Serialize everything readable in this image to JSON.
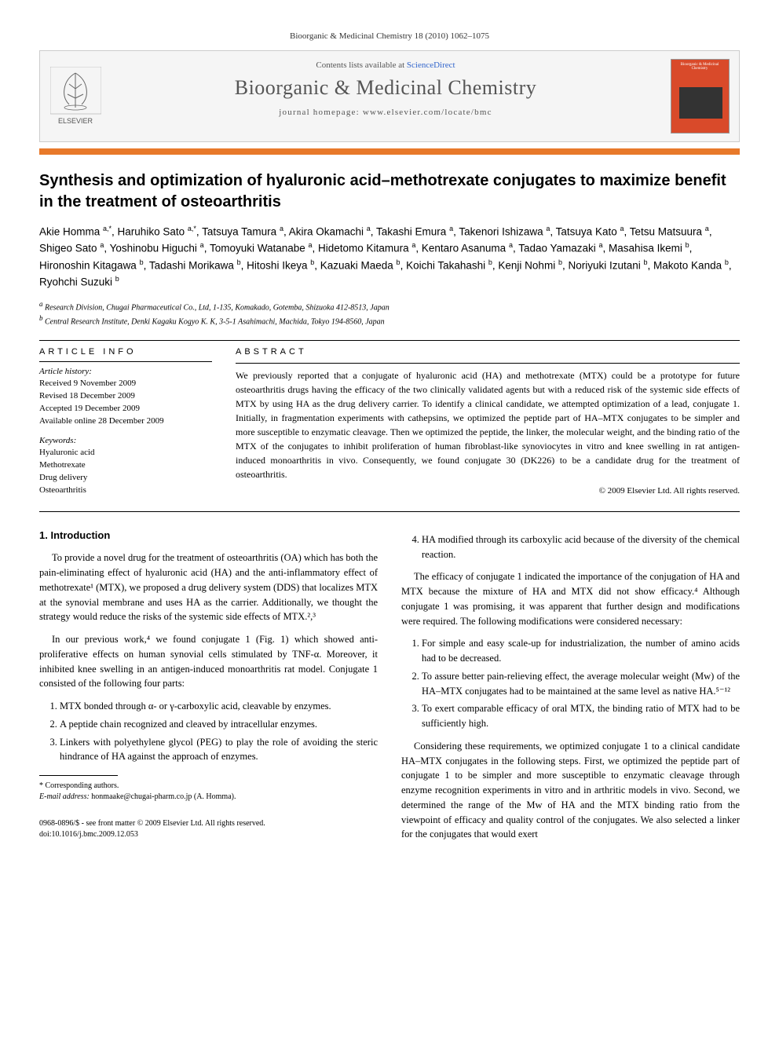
{
  "citation": "Bioorganic & Medicinal Chemistry 18 (2010) 1062–1075",
  "header": {
    "contents_prefix": "Contents lists available at ",
    "sd_label": "ScienceDirect",
    "journal_name": "Bioorganic & Medicinal Chemistry",
    "homepage_label": "journal homepage: www.elsevier.com/locate/bmc",
    "publisher": "ELSEVIER",
    "cover_text": "Bioorganic & Medicinal Chemistry"
  },
  "colors": {
    "accent_bar": "#e8792a",
    "cover_bg": "#d94a2a",
    "link": "#3366cc"
  },
  "title": "Synthesis and optimization of hyaluronic acid–methotrexate conjugates to maximize benefit in the treatment of osteoarthritis",
  "authors_html": "Akie Homma <sup>a,*</sup>, Haruhiko Sato <sup>a,*</sup>, Tatsuya Tamura <sup>a</sup>, Akira Okamachi <sup>a</sup>, Takashi Emura <sup>a</sup>, Takenori Ishizawa <sup>a</sup>, Tatsuya Kato <sup>a</sup>, Tetsu Matsuura <sup>a</sup>, Shigeo Sato <sup>a</sup>, Yoshinobu Higuchi <sup>a</sup>, Tomoyuki Watanabe <sup>a</sup>, Hidetomo Kitamura <sup>a</sup>, Kentaro Asanuma <sup>a</sup>, Tadao Yamazaki <sup>a</sup>, Masahisa Ikemi <sup>b</sup>, Hironoshin Kitagawa <sup>b</sup>, Tadashi Morikawa <sup>b</sup>, Hitoshi Ikeya <sup>b</sup>, Kazuaki Maeda <sup>b</sup>, Koichi Takahashi <sup>b</sup>, Kenji Nohmi <sup>b</sup>, Noriyuki Izutani <sup>b</sup>, Makoto Kanda <sup>b</sup>, Ryohchi Suzuki <sup>b</sup>",
  "affiliations": {
    "a": "Research Division, Chugai Pharmaceutical Co., Ltd, 1-135, Komakado, Gotemba, Shizuoka 412-8513, Japan",
    "b": "Central Research Institute, Denki Kagaku Kogyo K. K, 3-5-1 Asahimachi, Machida, Tokyo 194-8560, Japan"
  },
  "article_info": {
    "heading": "ARTICLE INFO",
    "history_head": "Article history:",
    "received": "Received 9 November 2009",
    "revised": "Revised 18 December 2009",
    "accepted": "Accepted 19 December 2009",
    "available": "Available online 28 December 2009",
    "keywords_head": "Keywords:",
    "keywords": [
      "Hyaluronic acid",
      "Methotrexate",
      "Drug delivery",
      "Osteoarthritis"
    ]
  },
  "abstract": {
    "heading": "ABSTRACT",
    "text": "We previously reported that a conjugate of hyaluronic acid (HA) and methotrexate (MTX) could be a prototype for future osteoarthritis drugs having the efficacy of the two clinically validated agents but with a reduced risk of the systemic side effects of MTX by using HA as the drug delivery carrier. To identify a clinical candidate, we attempted optimization of a lead, conjugate 1. Initially, in fragmentation experiments with cathepsins, we optimized the peptide part of HA–MTX conjugates to be simpler and more susceptible to enzymatic cleavage. Then we optimized the peptide, the linker, the molecular weight, and the binding ratio of the MTX of the conjugates to inhibit proliferation of human fibroblast-like synoviocytes in vitro and knee swelling in rat antigen-induced monoarthritis in vivo. Consequently, we found conjugate 30 (DK226) to be a candidate drug for the treatment of osteoarthritis.",
    "copyright": "© 2009 Elsevier Ltd. All rights reserved."
  },
  "body": {
    "left": {
      "section_num": "1.",
      "section_title": "Introduction",
      "p1": "To provide a novel drug for the treatment of osteoarthritis (OA) which has both the pain-eliminating effect of hyaluronic acid (HA) and the anti-inflammatory effect of methotrexate¹ (MTX), we proposed a drug delivery system (DDS) that localizes MTX at the synovial membrane and uses HA as the carrier. Additionally, we thought the strategy would reduce the risks of the systemic side effects of MTX.²,³",
      "p2": "In our previous work,⁴ we found conjugate 1 (Fig. 1) which showed anti-proliferative effects on human synovial cells stimulated by TNF-α. Moreover, it inhibited knee swelling in an antigen-induced monoarthritis rat model. Conjugate 1 consisted of the following four parts:",
      "list": [
        "MTX bonded through α- or γ-carboxylic acid, cleavable by enzymes.",
        "A peptide chain recognized and cleaved by intracellular enzymes.",
        "Linkers with polyethylene glycol (PEG) to play the role of avoiding the steric hindrance of HA against the approach of enzymes."
      ]
    },
    "right": {
      "list_cont": [
        "HA modified through its carboxylic acid because of the diversity of the chemical reaction."
      ],
      "p1": "The efficacy of conjugate 1 indicated the importance of the conjugation of HA and MTX because the mixture of HA and MTX did not show efficacy.⁴ Although conjugate 1 was promising, it was apparent that further design and modifications were required. The following modifications were considered necessary:",
      "list2": [
        "For simple and easy scale-up for industrialization, the number of amino acids had to be decreased.",
        "To assure better pain-relieving effect, the average molecular weight (Mw) of the HA–MTX conjugates had to be maintained at the same level as native HA.⁵⁻¹²",
        "To exert comparable efficacy of oral MTX, the binding ratio of MTX had to be sufficiently high."
      ],
      "p2": "Considering these requirements, we optimized conjugate 1 to a clinical candidate HA–MTX conjugates in the following steps. First, we optimized the peptide part of conjugate 1 to be simpler and more susceptible to enzymatic cleavage through enzyme recognition experiments in vitro and in arthritic models in vivo. Second, we determined the range of the Mw of HA and the MTX binding ratio from the viewpoint of efficacy and quality control of the conjugates. We also selected a linker for the conjugates that would exert"
    }
  },
  "footnote": {
    "corr": "* Corresponding authors.",
    "email_label": "E-mail address:",
    "email": "honmaake@chugai-pharm.co.jp",
    "email_who": "(A. Homma)."
  },
  "footer": {
    "line1": "0968-0896/$ - see front matter © 2009 Elsevier Ltd. All rights reserved.",
    "line2": "doi:10.1016/j.bmc.2009.12.053"
  }
}
